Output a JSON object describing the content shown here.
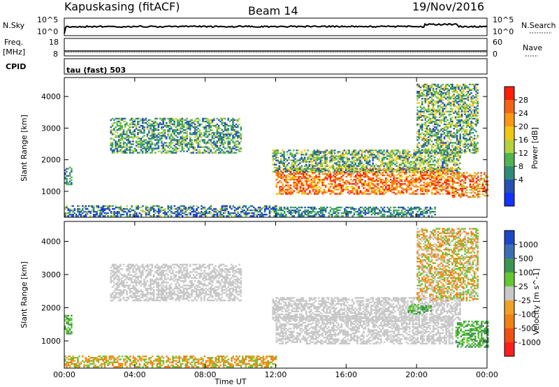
{
  "header": {
    "station": "Kapuskasing (fitACF)",
    "beam": "Beam 14",
    "date": "19/Nov/2016"
  },
  "top_panels": {
    "nsky_label": "N.Sky",
    "nsky_ticks": [
      "10^5",
      "10^0"
    ],
    "nsearch_label": "N.Search",
    "nsearch_ticks": [
      "10^5",
      "10^0"
    ],
    "freq_label_1": "Freq.",
    "freq_label_2": "[MHz]",
    "freq_ticks": [
      "18",
      "8"
    ],
    "nave_label": "Nave",
    "nave_ticks": [
      "60",
      "0"
    ],
    "cpid_label": "CPID",
    "cpid_text": "tau (fast) 503"
  },
  "colors": {
    "power_scale": [
      "#1432ff",
      "#2850b4",
      "#2d8c78",
      "#50b450",
      "#b4d23c",
      "#f0c814",
      "#fa9614",
      "#f56414",
      "#ff1e0a"
    ],
    "velocity_scale": [
      "#1e46c8",
      "#3c6eb4",
      "#3c9650",
      "#64c832",
      "#c8c8c8",
      "#f0a028",
      "#f08214",
      "#f05014",
      "#ff1e1e"
    ]
  },
  "chart_data": [
    {
      "type": "heatmap",
      "name": "power",
      "xlabel": "Time UT",
      "ylabel": "Slant Range [km]",
      "x_ticks": [
        "00:00",
        "04:00",
        "08:00",
        "12:00",
        "16:00",
        "20:00",
        "00:00"
      ],
      "xlim_hours": [
        0,
        24
      ],
      "y_ticks": [
        1000,
        2000,
        3000,
        4000
      ],
      "ylim_km": [
        180,
        4600
      ],
      "colorbar_label": "Power [dB]",
      "colorbar_ticks": [
        "28",
        "24",
        "20",
        "16",
        "12",
        "8",
        "4"
      ],
      "regions": [
        {
          "t0": 0.0,
          "t1": 0.4,
          "r0": 1200,
          "r1": 1750,
          "levels": [
            1,
            2,
            3
          ]
        },
        {
          "t0": 2.6,
          "t1": 10.0,
          "r0": 2200,
          "r1": 3300,
          "levels": [
            1,
            2,
            3,
            4
          ]
        },
        {
          "t0": 0.0,
          "t1": 12.0,
          "r0": 200,
          "r1": 550,
          "levels": [
            0,
            1,
            2,
            4
          ]
        },
        {
          "t0": 12.0,
          "t1": 22.0,
          "r0": 900,
          "r1": 1750,
          "levels": [
            5,
            6,
            7,
            8
          ]
        },
        {
          "t0": 11.8,
          "t1": 22.5,
          "r0": 1600,
          "r1": 2300,
          "levels": [
            1,
            2,
            3,
            4,
            5
          ]
        },
        {
          "t0": 12.0,
          "t1": 21.0,
          "r0": 200,
          "r1": 500,
          "levels": [
            1,
            2,
            3
          ]
        },
        {
          "t0": 22.0,
          "t1": 24.0,
          "r0": 800,
          "r1": 1600,
          "levels": [
            4,
            6,
            7,
            8
          ]
        },
        {
          "t0": 20.0,
          "t1": 23.5,
          "r0": 2200,
          "r1": 4400,
          "levels": [
            1,
            2,
            3,
            4,
            5
          ]
        }
      ]
    },
    {
      "type": "heatmap",
      "name": "velocity",
      "xlabel": "Time UT",
      "ylabel": "Slant Range [km]",
      "x_ticks": [
        "00:00",
        "04:00",
        "08:00",
        "12:00",
        "16:00",
        "20:00",
        "00:00"
      ],
      "xlim_hours": [
        0,
        24
      ],
      "y_ticks": [
        1000,
        2000,
        3000,
        4000
      ],
      "ylim_km": [
        180,
        4600
      ],
      "colorbar_label": "Velocity [m s^-1]",
      "colorbar_ticks": [
        "1000",
        "500",
        "100",
        "25",
        "-25",
        "-100",
        "-500",
        "-1000"
      ],
      "regions": [
        {
          "t0": 0.0,
          "t1": 0.4,
          "r0": 1200,
          "r1": 1750,
          "levels": [
            2,
            3
          ]
        },
        {
          "t0": 2.6,
          "t1": 10.0,
          "r0": 2200,
          "r1": 3300,
          "levels": [
            4
          ]
        },
        {
          "t0": 0.0,
          "t1": 12.0,
          "r0": 200,
          "r1": 550,
          "levels": [
            3,
            5,
            6
          ]
        },
        {
          "t0": 12.0,
          "t1": 22.0,
          "r0": 900,
          "r1": 1750,
          "levels": [
            4
          ]
        },
        {
          "t0": 11.8,
          "t1": 22.5,
          "r0": 1600,
          "r1": 2300,
          "levels": [
            4
          ]
        },
        {
          "t0": 19.5,
          "t1": 20.8,
          "r0": 1800,
          "r1": 2100,
          "levels": [
            3,
            2
          ]
        },
        {
          "t0": 22.2,
          "t1": 24.0,
          "r0": 800,
          "r1": 1600,
          "levels": [
            2,
            3
          ]
        },
        {
          "t0": 20.0,
          "t1": 23.5,
          "r0": 2200,
          "r1": 4400,
          "levels": [
            3,
            4,
            5,
            6
          ]
        }
      ]
    }
  ]
}
